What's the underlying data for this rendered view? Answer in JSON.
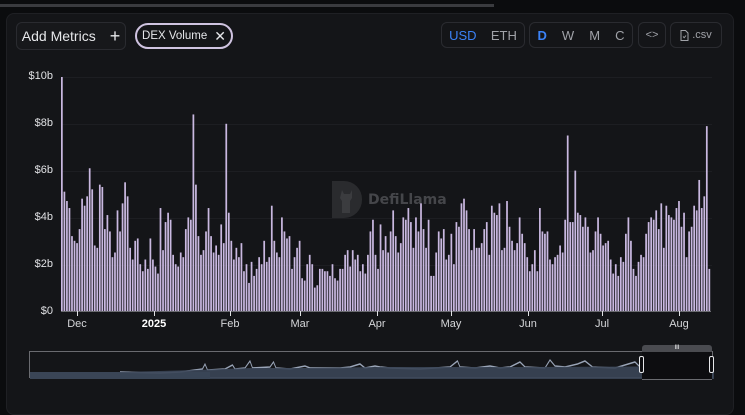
{
  "toolbar": {
    "add_metrics_label": "Add Metrics",
    "add_metrics_icon": "plus-icon",
    "chip_label": "DEX Volume",
    "chip_remove_icon": "close-icon",
    "currency_options": [
      "USD",
      "ETH"
    ],
    "currency_selected": "USD",
    "period_options": [
      "D",
      "W",
      "M",
      "C"
    ],
    "period_selected": "D",
    "embed_icon": "code-icon",
    "embed_label": "<>",
    "csv_icon": "file-icon",
    "csv_label": ".csv"
  },
  "watermark": {
    "text": "DefiLlama"
  },
  "colors": {
    "bar": "#c9b8e0",
    "accent": "#3b82f6",
    "background": "#141518"
  },
  "chart_data": {
    "type": "bar",
    "title": "DEX Volume",
    "xlabel": "",
    "ylabel": "",
    "ylim": [
      0,
      10
    ],
    "y_unit": "$ billions",
    "y_ticks": [
      "$0",
      "$2b",
      "$4b",
      "$6b",
      "$8b",
      "$10b"
    ],
    "x_ticks": [
      "Dec",
      "2025",
      "Feb",
      "Mar",
      "Apr",
      "May",
      "Jun",
      "Jul",
      "Aug"
    ],
    "grid": true,
    "legend": "none",
    "series": [
      {
        "name": "DEX Volume",
        "values": [
          10.0,
          5.1,
          4.7,
          4.4,
          3.2,
          3.0,
          2.9,
          3.5,
          4.8,
          4.5,
          4.9,
          6.1,
          5.2,
          2.8,
          2.7,
          5.4,
          5.3,
          3.5,
          4.1,
          3.4,
          2.3,
          2.5,
          4.3,
          3.4,
          4.6,
          5.5,
          4.9,
          2.7,
          2.2,
          3.0,
          3.1,
          2.0,
          1.7,
          2.2,
          1.8,
          3.1,
          2.2,
          1.9,
          1.6,
          4.4,
          2.6,
          3.8,
          4.2,
          3.9,
          2.4,
          2.0,
          1.9,
          2.5,
          2.3,
          3.5,
          4.0,
          3.9,
          8.4,
          5.4,
          3.2,
          2.4,
          2.6,
          3.4,
          4.4,
          3.2,
          2.5,
          2.8,
          2.4,
          3.7,
          2.9,
          8.0,
          4.2,
          3.0,
          2.2,
          2.7,
          2.3,
          2.9,
          1.7,
          2.0,
          1.2,
          2.1,
          1.5,
          1.8,
          2.3,
          2.0,
          3.0,
          2.1,
          2.3,
          4.5,
          3.0,
          2.5,
          2.3,
          4.0,
          3.4,
          3.1,
          3.2,
          1.8,
          2.3,
          2.7,
          3.0,
          1.4,
          1.3,
          2.0,
          2.4,
          2.0,
          1.0,
          1.1,
          1.8,
          1.8,
          1.7,
          1.7,
          1.5,
          2.0,
          1.4,
          1.3,
          1.8,
          1.8,
          2.4,
          2.6,
          1.9,
          2.6,
          2.2,
          2.4,
          1.7,
          2.0,
          1.6,
          2.4,
          3.4,
          3.9,
          2.4,
          1.8,
          3.7,
          2.6,
          3.2,
          2.5,
          3.4,
          4.3,
          3.2,
          2.5,
          2.9,
          4.0,
          3.9,
          4.4,
          3.8,
          2.7,
          4.0,
          3.4,
          4.6,
          3.5,
          2.7,
          3.9,
          1.5,
          1.5,
          2.5,
          3.4,
          3.1,
          3.5,
          2.2,
          2.4,
          3.3,
          2.0,
          3.8,
          3.6,
          4.6,
          4.8,
          4.3,
          3.5,
          2.6,
          3.5,
          2.7,
          2.7,
          2.9,
          3.5,
          3.8,
          2.4,
          4.5,
          4.2,
          4.1,
          4.6,
          2.6,
          2.7,
          4.7,
          3.6,
          3.0,
          2.6,
          2.9,
          4.0,
          3.3,
          2.9,
          2.3,
          1.7,
          2.0,
          2.6,
          1.7,
          4.4,
          3.4,
          3.3,
          3.4,
          2.2,
          2.0,
          2.3,
          2.4,
          2.8,
          2.5,
          3.9,
          7.5,
          3.8,
          3.8,
          6.0,
          4.2,
          4.1,
          3.6,
          4.0,
          3.6,
          2.5,
          2.6,
          3.4,
          4.0,
          3.3,
          2.8,
          2.9,
          3.0,
          2.2,
          1.6,
          2.0,
          1.5,
          2.3,
          2.1,
          3.3,
          4.0,
          3.0,
          1.8,
          1.5,
          2.1,
          2.4,
          2.3,
          3.3,
          3.8,
          4.0,
          3.9,
          4.3,
          3.5,
          4.6,
          2.7,
          4.5,
          4.1,
          4.0,
          3.9,
          4.4,
          4.7,
          3.6,
          4.2,
          2.3,
          3.4,
          3.6,
          4.5,
          4.3,
          5.6,
          4.4,
          4.9,
          7.9,
          1.8
        ]
      }
    ]
  }
}
